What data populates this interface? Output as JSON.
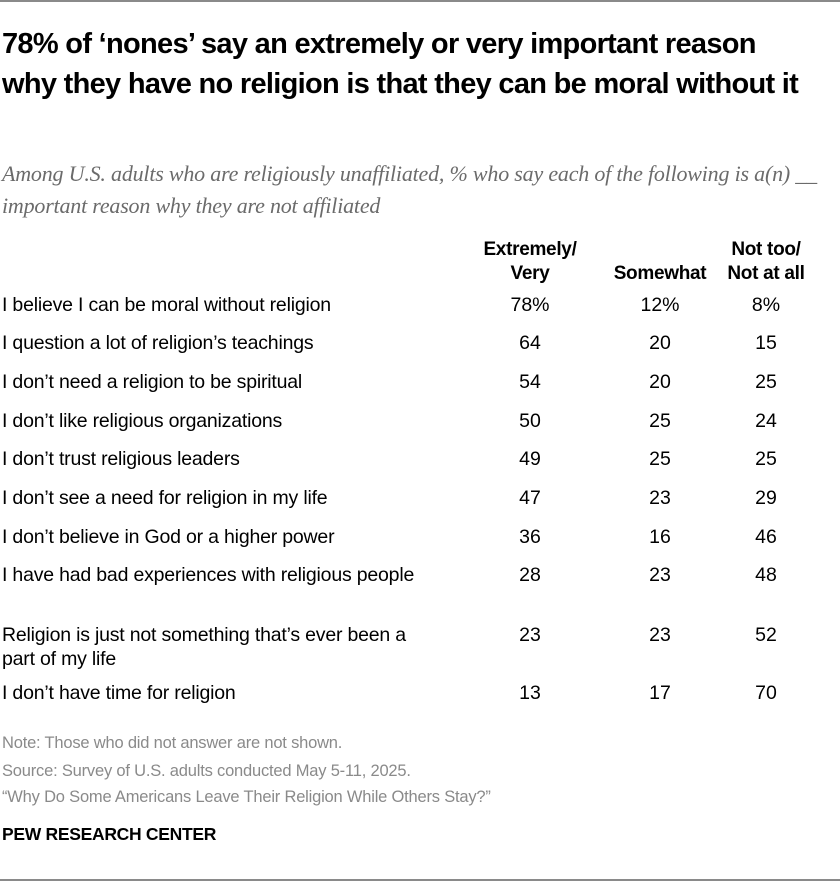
{
  "chart_data": {
    "type": "table",
    "title": "78% of ‘nones’ say an extremely or very important reason why they have no religion is that they can be moral without it",
    "subtitle": "Among U.S. adults who are religiously unaffiliated, % who say each of the following is a(n) __ important reason why they are not affiliated",
    "columns": [
      {
        "line1": "Extremely/",
        "line2": "Very"
      },
      {
        "line1": "",
        "line2": "Somewhat"
      },
      {
        "line1": "Not too/",
        "line2": "Not at all"
      }
    ],
    "rows": [
      {
        "label": "I believe I can be moral without religion",
        "values": [
          "78%",
          "12%",
          "8%"
        ]
      },
      {
        "label": "I question a lot of religion’s teachings",
        "values": [
          "64",
          "20",
          "15"
        ]
      },
      {
        "label": "I don’t need a religion to be spiritual",
        "values": [
          "54",
          "20",
          "25"
        ]
      },
      {
        "label": "I don’t like religious organizations",
        "values": [
          "50",
          "25",
          "24"
        ]
      },
      {
        "label": "I don’t trust religious leaders",
        "values": [
          "49",
          "25",
          "25"
        ]
      },
      {
        "label": "I don’t see a need for religion in my life",
        "values": [
          "47",
          "23",
          "29"
        ]
      },
      {
        "label": "I don’t believe in God or a higher power",
        "values": [
          "36",
          "16",
          "46"
        ]
      },
      {
        "label": "I have had bad experiences with religious people",
        "values": [
          "28",
          "23",
          "48"
        ]
      },
      {
        "label": "Religion is just not something that’s ever been a part of my life",
        "values": [
          "23",
          "23",
          "52"
        ]
      },
      {
        "label": "I don’t have time for religion",
        "values": [
          "13",
          "17",
          "70"
        ]
      }
    ]
  },
  "footer": {
    "note": "Note: Those who did not answer are not shown.",
    "source": "Source: Survey of U.S. adults conducted May 5-11, 2025.",
    "report": "“Why Do Some Americans Leave Their Religion While Others Stay?”",
    "logo": "PEW RESEARCH CENTER"
  },
  "colors": {
    "text": "#000000",
    "subtitle": "#6b6b6b",
    "footnote": "#8a8a8a",
    "rule": "#8a8a8a"
  }
}
